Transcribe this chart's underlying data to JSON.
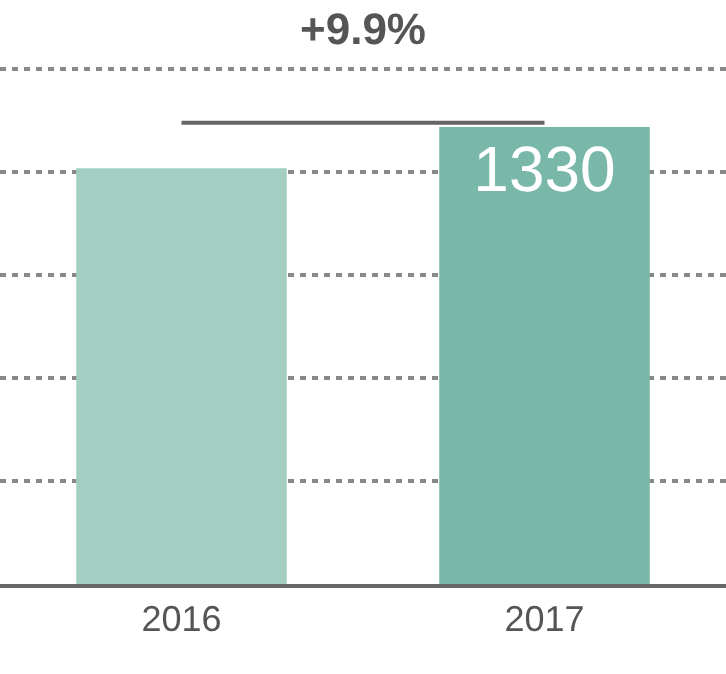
{
  "chart_data": {
    "type": "bar",
    "categories": [
      "2016",
      "2017"
    ],
    "values": [
      1210,
      1330
    ],
    "value_labels": [
      null,
      "1330"
    ],
    "colors": [
      "#a3cfc3",
      "#79b8a9"
    ],
    "ylim": [
      0,
      1700
    ],
    "yticks": [
      {
        "value": 300,
        "label": null
      },
      {
        "value": 600,
        "label": null
      },
      {
        "value": 900,
        "label": null
      },
      {
        "value": 1200,
        "label": null
      },
      {
        "value": 1500,
        "label": null
      }
    ],
    "grid": "y",
    "legend": false,
    "annotations": [
      "+9.9%"
    ]
  }
}
